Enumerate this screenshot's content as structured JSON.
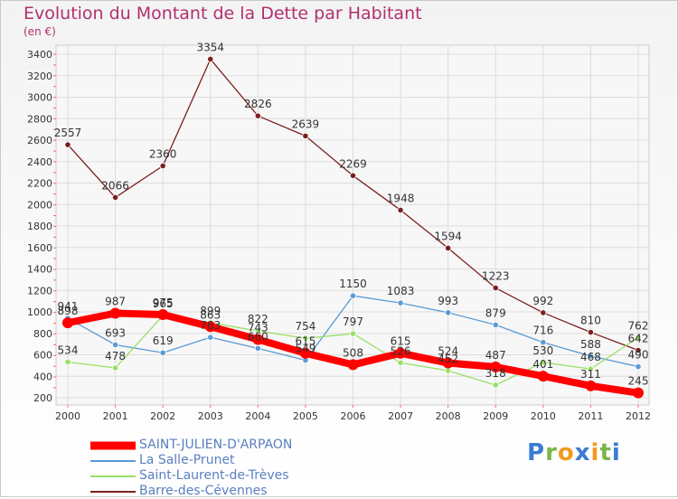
{
  "header": {
    "title": "Evolution du Montant de la Dette par Habitant",
    "unit": "(en €)"
  },
  "logo": {
    "text": "Proxiti"
  },
  "colors": {
    "title": "#b0306e",
    "grid": "#dddddd",
    "axis": "#555555",
    "legend_text": "#5a7fbf"
  },
  "chart_data": {
    "type": "line",
    "title": "Evolution du Montant de la Dette par Habitant",
    "ylabel": "(en €)",
    "xlabel": "",
    "categories": [
      "2000",
      "2001",
      "2002",
      "2003",
      "2004",
      "2005",
      "2006",
      "2007",
      "2008",
      "2009",
      "2010",
      "2011",
      "2012"
    ],
    "yticks": [
      200,
      400,
      600,
      800,
      1000,
      1200,
      1400,
      1600,
      1800,
      2000,
      2200,
      2400,
      2600,
      2800,
      3000,
      3200,
      3400
    ],
    "ylim": [
      200,
      3450
    ],
    "grid": true,
    "legend_position": "bottom-left",
    "series": [
      {
        "name": "SAINT-JULIEN-D'ARPAON",
        "color": "#ff0000",
        "values": [
          898,
          987,
          975,
          863,
          743,
          615,
          508,
          615,
          524,
          487,
          401,
          311,
          245
        ],
        "labels": [
          "898",
          "987",
          "975",
          "863",
          "743",
          "615",
          "508",
          "615",
          "524",
          "487",
          "401",
          "311",
          "245"
        ]
      },
      {
        "name": "La Salle-Prunet",
        "color": "#5b9ad5",
        "values": [
          941,
          693,
          619,
          763,
          660,
          549,
          1150,
          1083,
          993,
          879,
          716,
          588,
          490
        ],
        "labels": [
          "941",
          "693",
          "619",
          "763",
          "660",
          "549",
          "1150",
          "1083",
          "993",
          "879",
          "716",
          "588",
          "490"
        ]
      },
      {
        "name": "Saint-Laurent-de-Trèves",
        "color": "#99e066",
        "values": [
          534,
          478,
          965,
          899,
          822,
          754,
          797,
          526,
          452,
          318,
          530,
          468,
          762
        ],
        "labels": [
          "534",
          "478",
          "965",
          "899",
          "822",
          "754",
          "797",
          "526",
          "452",
          "318",
          "530",
          "468",
          "762"
        ]
      },
      {
        "name": "Barre-des-Cévennes",
        "color": "#7b1f1f",
        "values": [
          2557,
          2066,
          2360,
          3354,
          2826,
          2639,
          2269,
          1948,
          1594,
          1223,
          992,
          810,
          642
        ],
        "labels": [
          "2557",
          "2066",
          "2360",
          "3354",
          "2826",
          "2639",
          "2269",
          "1948",
          "1594",
          "1223",
          "992",
          "810",
          "642"
        ]
      }
    ]
  }
}
